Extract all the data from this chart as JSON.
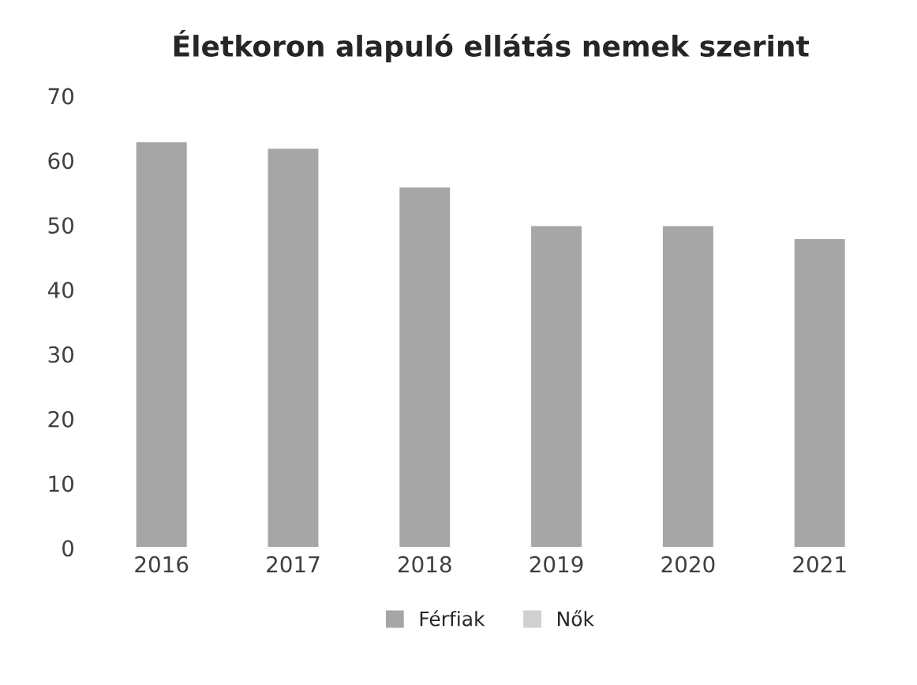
{
  "chart_data": {
    "type": "bar",
    "title": "Életkoron alapuló ellátás nemek szerint",
    "categories": [
      "2016",
      "2017",
      "2018",
      "2019",
      "2020",
      "2021"
    ],
    "series": [
      {
        "name": "Férfiak",
        "color": "#a6a6a6",
        "values": [
          63,
          62,
          56,
          50,
          50,
          48
        ]
      },
      {
        "name": "Nők",
        "color": "#d0d0d0",
        "values": [
          null,
          null,
          null,
          null,
          null,
          null
        ]
      }
    ],
    "stacked": true,
    "ylim": [
      0,
      70
    ],
    "yticks": [
      0,
      10,
      20,
      30,
      40,
      50,
      60,
      70
    ],
    "grid": false,
    "legend": "bottom"
  }
}
